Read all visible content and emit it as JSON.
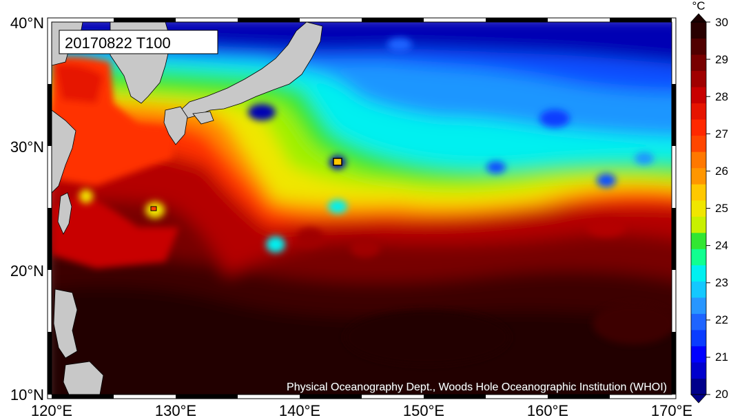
{
  "map": {
    "stamp": "20170822 T100",
    "credit": "Physical Oceanography Dept., Woods Hole Oceanographic Institution (WHOI)",
    "lat_labels": [
      "40°N",
      "30°N",
      "20°N",
      "10°N"
    ],
    "lon_labels": [
      "120°E",
      "130°E",
      "140°E",
      "150°E",
      "160°E",
      "170°E"
    ],
    "lat_range": [
      10,
      40
    ],
    "lon_range": [
      120,
      170
    ]
  },
  "colorbar": {
    "unit": "°C",
    "labels": [
      "30",
      "29",
      "28",
      "27",
      "26",
      "25",
      "24",
      "23",
      "22",
      "21",
      "20"
    ],
    "min": 20,
    "max": 30,
    "colors": [
      "#00008b",
      "#0000cd",
      "#0000ff",
      "#0a3cff",
      "#1e64ff",
      "#2896ff",
      "#14c8ff",
      "#00f0f0",
      "#10ff90",
      "#32e632",
      "#c8f000",
      "#f0e600",
      "#ffc800",
      "#ff9600",
      "#ff7800",
      "#ff4600",
      "#ff2800",
      "#e61400",
      "#c80000",
      "#a00000",
      "#780000",
      "#500000",
      "#280000"
    ]
  }
}
